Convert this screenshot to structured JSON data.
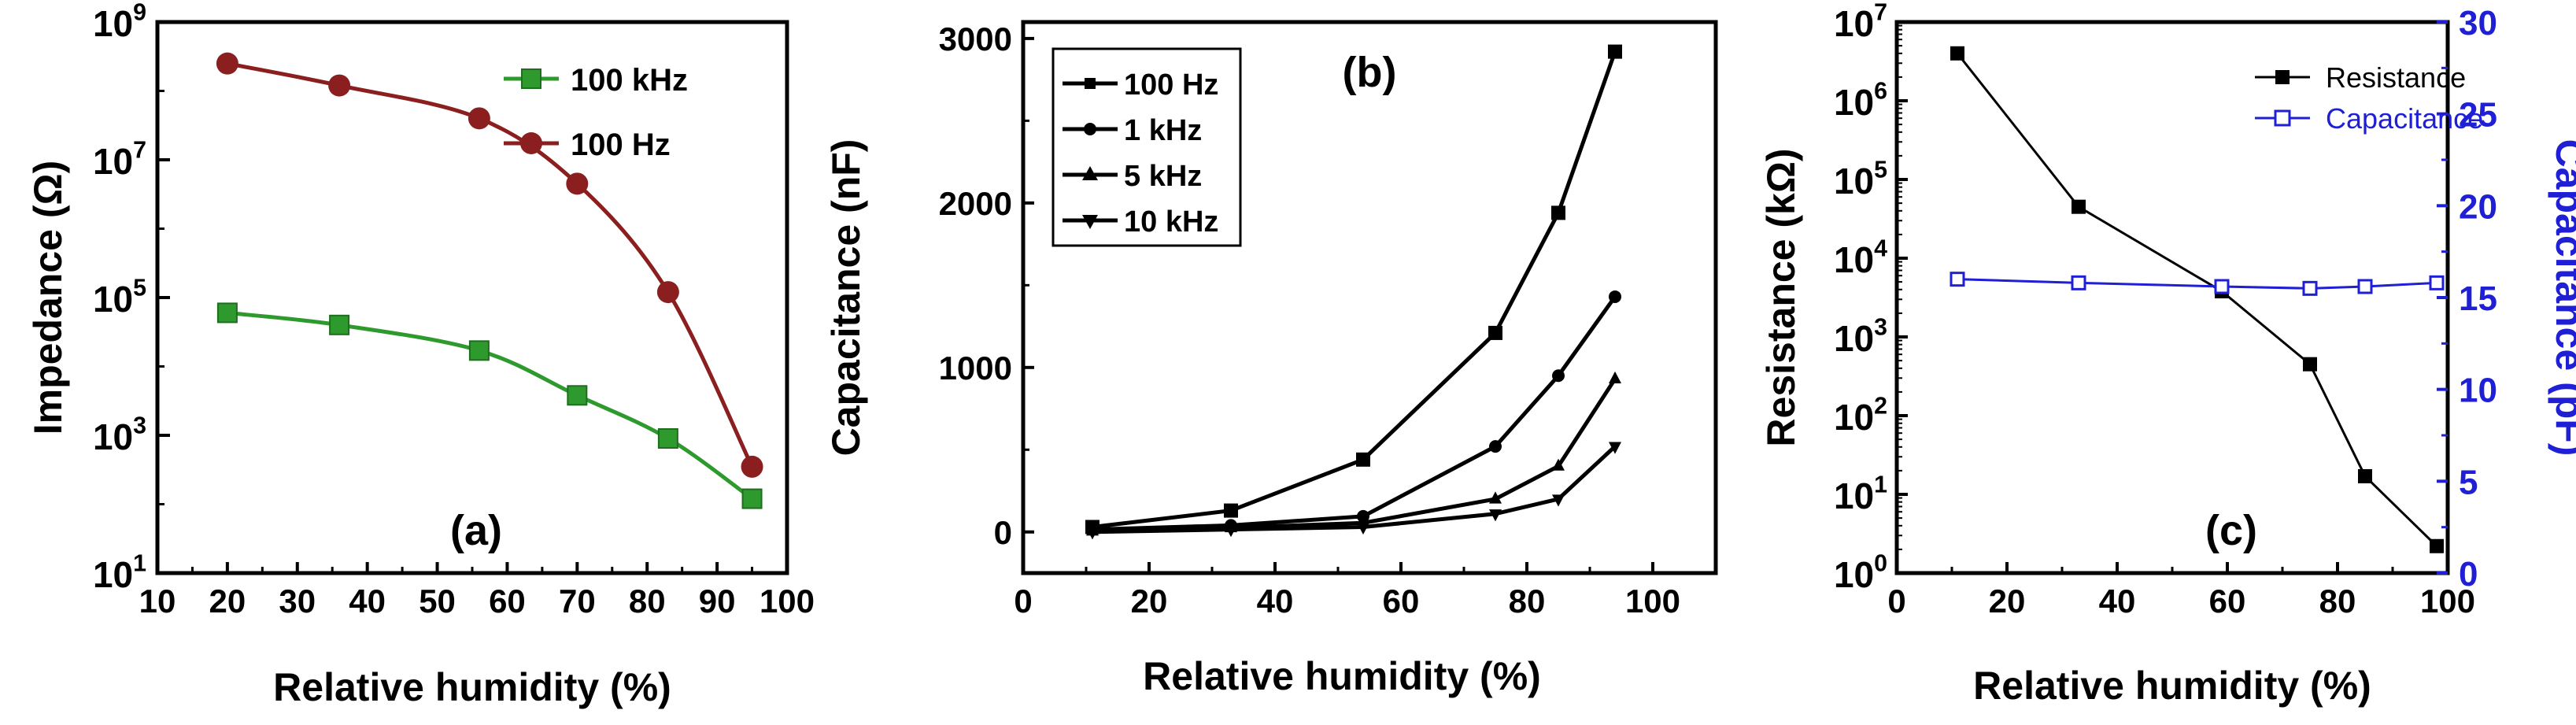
{
  "colors": {
    "axis": "#000000",
    "green": "#2e9a2e",
    "red": "#8b1e1e",
    "blue": "#1f1fd6",
    "black": "#000000"
  },
  "chart_data": [
    {
      "id": "a",
      "type": "line",
      "panel_label": "(a)",
      "xlabel": "Relative humidity (%)",
      "ylabel": "Impedance (Ω)",
      "yscale": "log",
      "xlim": [
        10,
        100
      ],
      "ylim_exp": [
        1,
        9
      ],
      "xticks": [
        "10",
        "20",
        "30",
        "40",
        "50",
        "60",
        "70",
        "80",
        "90",
        "100"
      ],
      "yticks": [
        {
          "base": "10",
          "exp": "1"
        },
        {
          "base": "10",
          "exp": "3"
        },
        {
          "base": "10",
          "exp": "5"
        },
        {
          "base": "10",
          "exp": "7"
        },
        {
          "base": "10",
          "exp": "9"
        }
      ],
      "legend_position": "top-right",
      "series": [
        {
          "name": "100 kHz",
          "marker": "square",
          "x": [
            20,
            36,
            56,
            70,
            83,
            95
          ],
          "y": [
            60000,
            40000,
            17000,
            3800,
            900,
            120
          ]
        },
        {
          "name": "100 Hz",
          "marker": "circle",
          "x": [
            20,
            36,
            56,
            70,
            83,
            95
          ],
          "y": [
            250000000,
            120000000,
            40000000,
            4500000,
            120000,
            350
          ]
        }
      ]
    },
    {
      "id": "b",
      "type": "line",
      "panel_label": "(b)",
      "xlabel": "Relative humidity (%)",
      "ylabel": "Capacitance (nF)",
      "yscale": "linear",
      "xlim": [
        0,
        110
      ],
      "ylim": [
        -250,
        3100
      ],
      "xticks": [
        "0",
        "20",
        "40",
        "60",
        "80",
        "100"
      ],
      "yticks": [
        "0",
        "1000",
        "2000",
        "3000"
      ],
      "legend_position": "top-left",
      "series": [
        {
          "name": "100 Hz",
          "marker": "square",
          "x": [
            11,
            33,
            54,
            75,
            85,
            94
          ],
          "y": [
            30,
            130,
            440,
            1210,
            1940,
            2920
          ]
        },
        {
          "name": "1 kHz",
          "marker": "circle",
          "x": [
            11,
            33,
            54,
            75,
            85,
            94
          ],
          "y": [
            15,
            40,
            95,
            520,
            950,
            1430
          ]
        },
        {
          "name": "5 kHz",
          "marker": "triangle-up",
          "x": [
            11,
            33,
            54,
            75,
            85,
            94
          ],
          "y": [
            5,
            25,
            55,
            200,
            400,
            930
          ]
        },
        {
          "name": "10 kHz",
          "marker": "triangle-down",
          "x": [
            11,
            33,
            54,
            75,
            85,
            94
          ],
          "y": [
            0,
            15,
            30,
            110,
            200,
            520
          ]
        }
      ]
    },
    {
      "id": "c",
      "type": "line",
      "panel_label": "(c)",
      "xlabel": "Relative humidity (%)",
      "ylabel": "Resistance (kΩ)",
      "y2label": "Capacitance (pF)",
      "yscale": "log",
      "xlim": [
        0,
        100
      ],
      "ylim_exp": [
        0,
        7
      ],
      "y2lim": [
        0,
        30
      ],
      "xticks": [
        "0",
        "20",
        "40",
        "60",
        "80",
        "100"
      ],
      "yticks": [
        {
          "base": "10",
          "exp": "0"
        },
        {
          "base": "10",
          "exp": "1"
        },
        {
          "base": "10",
          "exp": "2"
        },
        {
          "base": "10",
          "exp": "3"
        },
        {
          "base": "10",
          "exp": "4"
        },
        {
          "base": "10",
          "exp": "5"
        },
        {
          "base": "10",
          "exp": "6"
        },
        {
          "base": "10",
          "exp": "7"
        }
      ],
      "y2ticks": [
        "0",
        "5",
        "10",
        "15",
        "20",
        "25",
        "30"
      ],
      "legend_position": "top-right",
      "series": [
        {
          "name": "Resistance",
          "marker": "square-filled",
          "axis": "left",
          "x": [
            11,
            33,
            59,
            75,
            85,
            98
          ],
          "y": [
            4000000,
            45000,
            3800,
            450,
            17,
            2.2
          ]
        },
        {
          "name": "Capacitance",
          "marker": "square-open",
          "axis": "right",
          "x": [
            11,
            33,
            59,
            75,
            85,
            98
          ],
          "y": [
            16,
            15.8,
            15.6,
            15.5,
            15.6,
            15.8
          ]
        }
      ]
    }
  ]
}
